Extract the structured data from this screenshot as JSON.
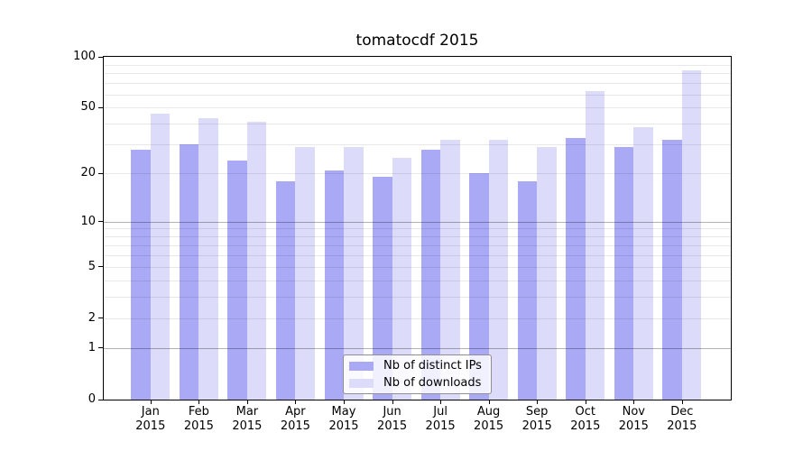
{
  "title": "tomatocdf 2015",
  "chart_data": {
    "type": "bar",
    "title": "tomatocdf 2015",
    "x_months": [
      "Jan",
      "Feb",
      "Mar",
      "Apr",
      "May",
      "Jun",
      "Jul",
      "Aug",
      "Sep",
      "Oct",
      "Nov",
      "Dec"
    ],
    "x_year": "2015",
    "series": [
      {
        "name": "Nb of distinct IPs",
        "color": "#a9a9f6",
        "values": [
          28,
          30,
          24,
          18,
          21,
          19,
          28,
          20,
          18,
          33,
          29,
          32
        ]
      },
      {
        "name": "Nb of downloads",
        "color": "#dcdcfa",
        "values": [
          46,
          43,
          41,
          29,
          29,
          25,
          32,
          32,
          29,
          63,
          38,
          83
        ]
      }
    ],
    "yscale": "log1p",
    "ylim": [
      0,
      100
    ],
    "yticks": [
      100,
      50,
      20,
      10,
      5,
      2,
      1,
      0
    ],
    "major_gridlines": [
      1,
      10
    ],
    "minor_gridlines": [
      2,
      3,
      4,
      5,
      6,
      7,
      8,
      9,
      20,
      30,
      40,
      50,
      60,
      70,
      80,
      90
    ],
    "grid": "horizontal",
    "legend_position": "lower center",
    "colors": {
      "bar_distinct_ips": "#a9a9f6",
      "bar_downloads": "#dcdcfa",
      "major_grid": "rgba(0,0,0,0.30)",
      "minor_grid": "rgba(0,0,0,0.09)",
      "axis": "#000000"
    }
  }
}
